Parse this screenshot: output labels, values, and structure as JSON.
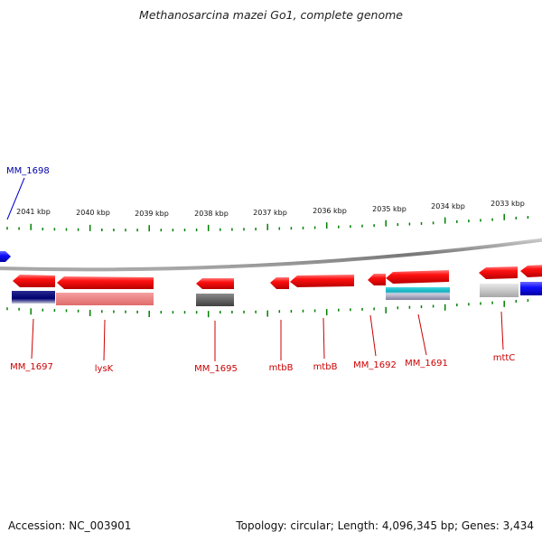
{
  "title": "Methanosarcina mazei Go1, complete genome",
  "footer": {
    "accession": "Accession: NC_003901",
    "summary": "Topology: circular; Length: 4,096,345 bp; Genes: 3,434"
  },
  "ruler": {
    "labels": [
      "2041 kbp",
      "2040 kbp",
      "2039 kbp",
      "2038 kbp",
      "2037 kbp",
      "2036 kbp",
      "2035 kbp",
      "2034 kbp",
      "2033 kbp"
    ]
  },
  "genes": {
    "top": [
      {
        "name": "MM_1698",
        "color": "#0000aa"
      }
    ],
    "bottom": [
      {
        "name": "MM_1697",
        "color": "#cc0000"
      },
      {
        "name": "lysK",
        "color": "#cc0000"
      },
      {
        "name": "MM_1695",
        "color": "#cc0000"
      },
      {
        "name": "mtbB",
        "color": "#cc0000"
      },
      {
        "name": "mtbB",
        "color": "#cc0000"
      },
      {
        "name": "MM_1692",
        "color": "#cc0000"
      },
      {
        "name": "MM_1691",
        "color": "#cc0000"
      },
      {
        "name": "mttC",
        "color": "#cc0000"
      }
    ]
  },
  "colors": {
    "forward_gene": "#0000ee",
    "reverse_gene": "#ee0000",
    "ticks": "#008000",
    "backbone": "#888888"
  }
}
